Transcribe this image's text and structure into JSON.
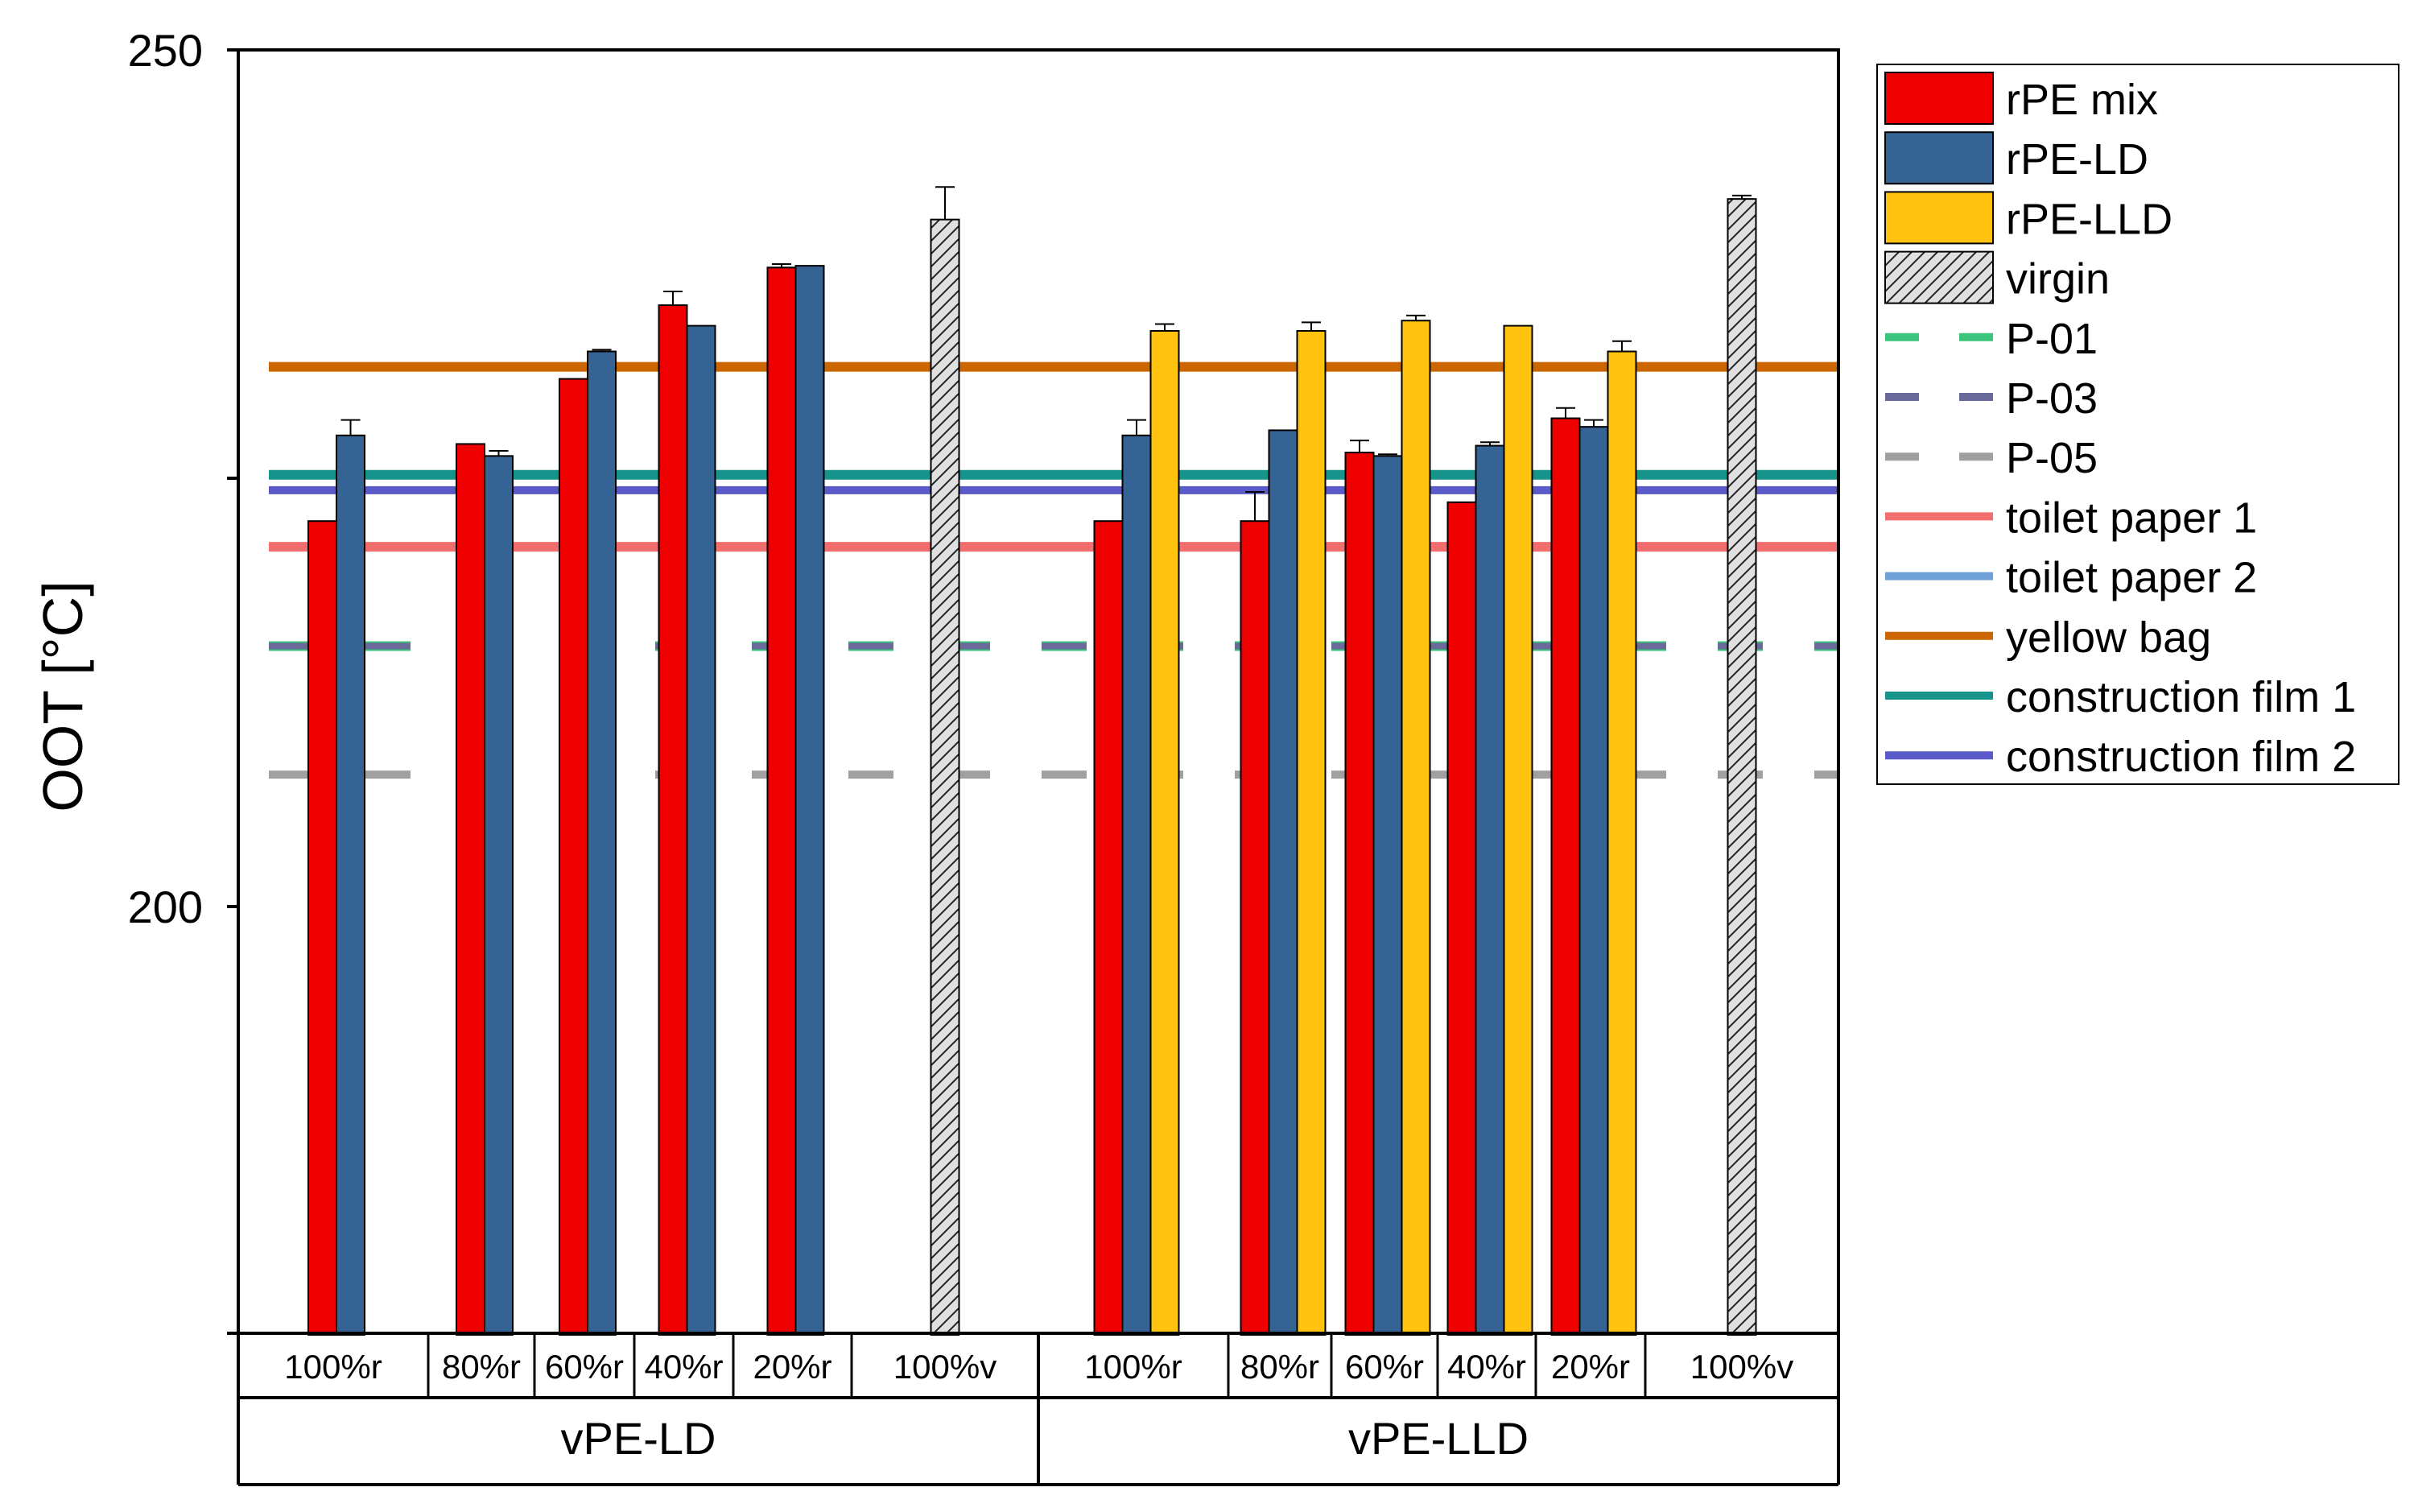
{
  "chart_data": {
    "type": "bar",
    "ylabel": "OOT [°C]",
    "ylim": [
      175,
      250
    ],
    "yticks": [
      200,
      250
    ],
    "groups": [
      {
        "label": "vPE-LD",
        "subcategories": [
          "100%r",
          "80%r",
          "60%r",
          "40%r",
          "20%r",
          "100%v"
        ]
      },
      {
        "label": "vPE-LLD",
        "subcategories": [
          "100%r",
          "80%r",
          "60%r",
          "40%r",
          "20%r",
          "100%v"
        ]
      }
    ],
    "series": [
      {
        "name": "rPE mix",
        "color": "#ee0000",
        "values": [
          [
            222.5,
            227,
            230.8,
            235.1,
            237.3,
            null
          ],
          [
            222.5,
            222.5,
            226.5,
            223.6,
            228.5,
            null
          ]
        ],
        "errors": [
          [
            0,
            0,
            0,
            0.8,
            0.2,
            0
          ],
          [
            0,
            1.7,
            0.7,
            0,
            0.6,
            0
          ]
        ]
      },
      {
        "name": "rPE-LD",
        "color": "#356494",
        "values": [
          [
            227.5,
            226.3,
            232.4,
            233.9,
            237.4,
            null
          ],
          [
            227.5,
            227.8,
            226.3,
            226.9,
            228,
            null
          ]
        ],
        "errors": [
          [
            0.9,
            0.3,
            0.1,
            0,
            0,
            0
          ],
          [
            0.9,
            0,
            0.1,
            0.2,
            0.4,
            0
          ]
        ]
      },
      {
        "name": "rPE-LLD",
        "color": "#ffc20e",
        "values": [
          [
            null,
            null,
            null,
            null,
            null,
            null
          ],
          [
            233.6,
            233.6,
            234.2,
            233.9,
            232.4,
            null
          ]
        ],
        "errors": [
          [
            0,
            0,
            0,
            0,
            0,
            0
          ],
          [
            0.4,
            0.5,
            0.3,
            0,
            0.6,
            0
          ]
        ]
      },
      {
        "name": "virgin",
        "color": "#dddddd",
        "hatch": true,
        "values": [
          [
            null,
            null,
            null,
            null,
            null,
            240.1
          ],
          [
            null,
            null,
            null,
            null,
            null,
            241.3
          ]
        ],
        "errors": [
          [
            0,
            0,
            0,
            0,
            0,
            1.9
          ],
          [
            0,
            0,
            0,
            0,
            0,
            0.2
          ]
        ]
      }
    ],
    "reference_lines": [
      {
        "name": "P-01",
        "value": 215.2,
        "color": "#3cc47c",
        "style": "dashed"
      },
      {
        "name": "P-03",
        "value": 215.2,
        "color": "#6a6a9a",
        "style": "dashed"
      },
      {
        "name": "P-05",
        "value": 207.7,
        "color": "#a0a0a0",
        "style": "dashed"
      },
      {
        "name": "toilet paper 1",
        "value": 221,
        "color": "#f26d6d",
        "style": "solid"
      },
      {
        "name": "toilet paper 2",
        "value": 225.2,
        "color": "#6fa0d8",
        "style": "solid"
      },
      {
        "name": "yellow bag",
        "value": 231.5,
        "color": "#cc6600",
        "style": "solid"
      },
      {
        "name": "construction film 1",
        "value": 225.2,
        "color": "#16948c",
        "style": "solid"
      },
      {
        "name": "construction film 2",
        "value": 224.3,
        "color": "#5a5ac8",
        "style": "solid"
      }
    ],
    "legend": {
      "position": "right",
      "entries": [
        "rPE mix",
        "rPE-LD",
        "rPE-LLD",
        "virgin",
        "P-01",
        "P-03",
        "P-05",
        "toilet paper 1",
        "toilet paper 2",
        "yellow bag",
        "construction film 1",
        "construction film 2"
      ]
    }
  }
}
